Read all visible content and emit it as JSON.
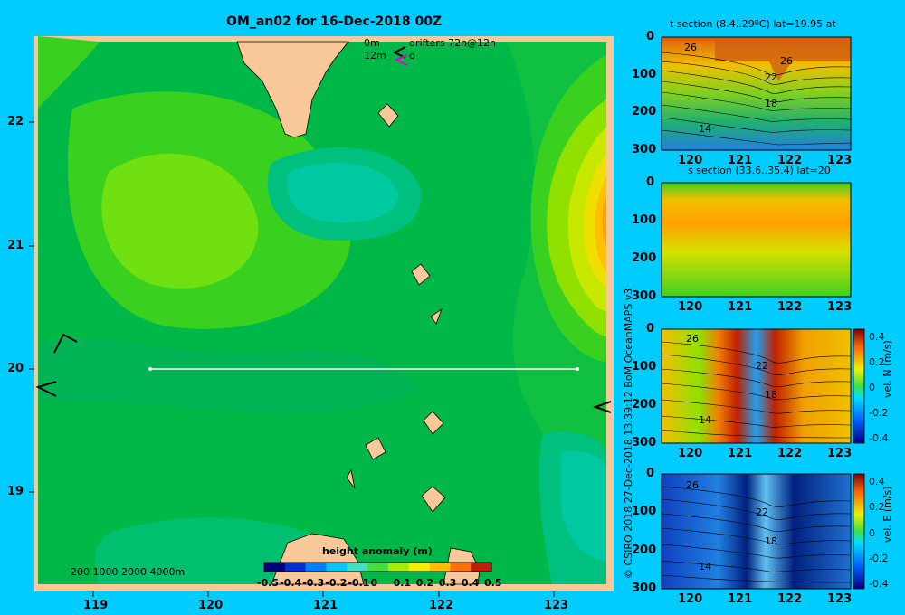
{
  "colors": {
    "background": "#00ccff",
    "land": "#f8c898",
    "frame": "#f8c898",
    "section_line": "#ffffff"
  },
  "map": {
    "title": "OM_an02 for 16-Dec-2018 00Z",
    "drifter_legend": {
      "line1_label": "0m",
      "line1_text": "drifters 72h@12h",
      "line2_label": "12m",
      "line2_text": "o"
    },
    "x_ticks": [
      "119",
      "120",
      "121",
      "122",
      "123"
    ],
    "y_ticks": [
      "22",
      "21",
      "20",
      "19"
    ],
    "bathymetry_legend": "200  1000  2000  4000m",
    "colorbar": {
      "title": "height anomaly (m)",
      "tick_labels": [
        "-0.5",
        "-0.4",
        "-0.3",
        "-0.2",
        "-0.1",
        "0",
        "0.1",
        "0.2",
        "0.3",
        "0.4",
        "0.5"
      ]
    },
    "section_line": {
      "lon_start": 119.5,
      "lon_end": 123.2,
      "lat": 20
    }
  },
  "credit": "© CSIRO 2018   27-Dec-2018 13:39:12 BoM OceanMAPS v3",
  "panels": {
    "t": {
      "title": "t section (8.4..29ºC) lat=19.95 at",
      "contour_labels": [
        "26",
        "26",
        "22",
        "18",
        "14"
      ]
    },
    "s": {
      "title": "s section (33.6..35.4) lat=20",
      "contour_labels": []
    },
    "vn": {
      "title": "",
      "label": "vel. N (m/s)",
      "cbar_ticks": [
        "0.4",
        "0.2",
        "0",
        "-0.2",
        "-0.4"
      ],
      "contour_labels": [
        "26",
        "22",
        "18",
        "14"
      ]
    },
    "ve": {
      "title": "",
      "label": "vel. E (m/s)",
      "cbar_ticks": [
        "0.4",
        "0.2",
        "0",
        "-0.2",
        "-0.4"
      ],
      "contour_labels": [
        "26",
        "22",
        "18",
        "14"
      ]
    },
    "depth_ticks": [
      "0",
      "100",
      "200",
      "300"
    ],
    "lon_ticks": [
      "120",
      "121",
      "122",
      "123"
    ]
  },
  "chart_data": [
    {
      "type": "heatmap",
      "title": "OM_an02 for 16-Dec-2018 00Z",
      "xlabel": "",
      "ylabel": "",
      "xlim": [
        118.5,
        123.5
      ],
      "ylim": [
        18.3,
        22.7
      ],
      "x_ticks": [
        119,
        120,
        121,
        122,
        123
      ],
      "y_ticks": [
        22,
        21,
        20,
        19
      ],
      "colorbar_label": "height anomaly (m)",
      "colorbar_range": [
        -0.5,
        0.5
      ],
      "field_estimate": [
        {
          "region": "background",
          "value": 0.2
        },
        {
          "region": "west central",
          "value": 0.3
        },
        {
          "region": "east edge",
          "value": 0.5
        },
        {
          "region": "center",
          "value": 0.15
        }
      ]
    },
    {
      "type": "heatmap",
      "title": "t section (8.4..29ºC) lat=19.95 at",
      "xlim": [
        119.5,
        123.2
      ],
      "ylim": [
        300,
        0
      ],
      "value_range": [
        8.4,
        29
      ]
    },
    {
      "type": "heatmap",
      "title": "s section (33.6..35.4) lat=20",
      "xlim": [
        119.5,
        123.2
      ],
      "ylim": [
        300,
        0
      ],
      "value_range": [
        33.6,
        35.4
      ]
    },
    {
      "type": "heatmap",
      "title": "",
      "colorbar_label": "vel. N (m/s)",
      "xlim": [
        119.5,
        123.2
      ],
      "ylim": [
        300,
        0
      ],
      "value_range": [
        -0.4,
        0.4
      ]
    },
    {
      "type": "heatmap",
      "title": "",
      "colorbar_label": "vel. E (m/s)",
      "xlim": [
        119.5,
        123.2
      ],
      "ylim": [
        300,
        0
      ],
      "value_range": [
        -0.4,
        0.4
      ]
    }
  ]
}
